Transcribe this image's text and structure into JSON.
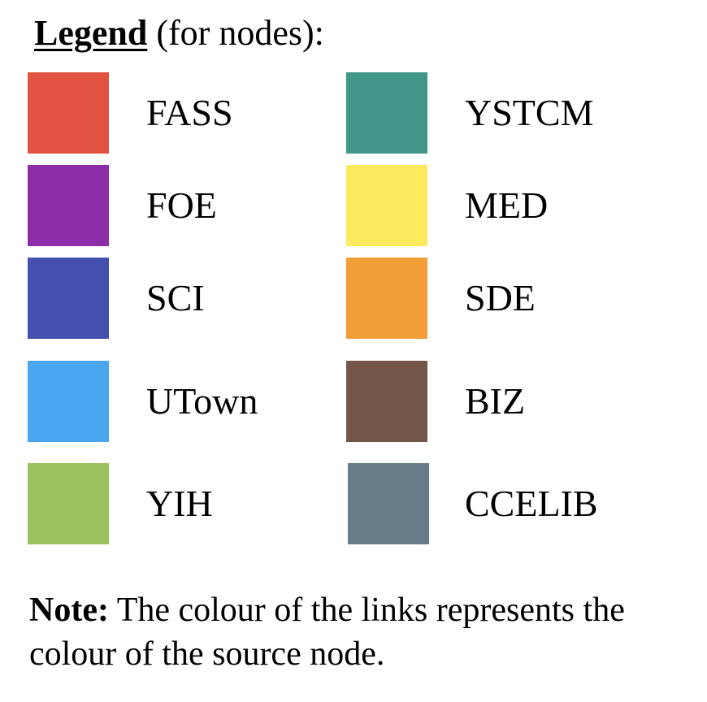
{
  "legend": {
    "heading": "Legend",
    "subheading": " (for nodes):",
    "entries": [
      {
        "label": "FASS",
        "color": "#E15241"
      },
      {
        "label": "FOE",
        "color": "#8D2DA8"
      },
      {
        "label": "SCI",
        "color": "#4350AF"
      },
      {
        "label": "UTown",
        "color": "#4AA6EF"
      },
      {
        "label": "YIH",
        "color": "#9AC25F"
      },
      {
        "label": "YSTCM",
        "color": "#429687"
      },
      {
        "label": "MED",
        "color": "#FBE95E"
      },
      {
        "label": "SDE",
        "color": "#F29E38"
      },
      {
        "label": "BIZ",
        "color": "#735549"
      },
      {
        "label": "CCELIB",
        "color": "#667C89"
      }
    ]
  },
  "note": {
    "heading": "Note:",
    "text": " The colour of the links represents the colour of the source node."
  }
}
